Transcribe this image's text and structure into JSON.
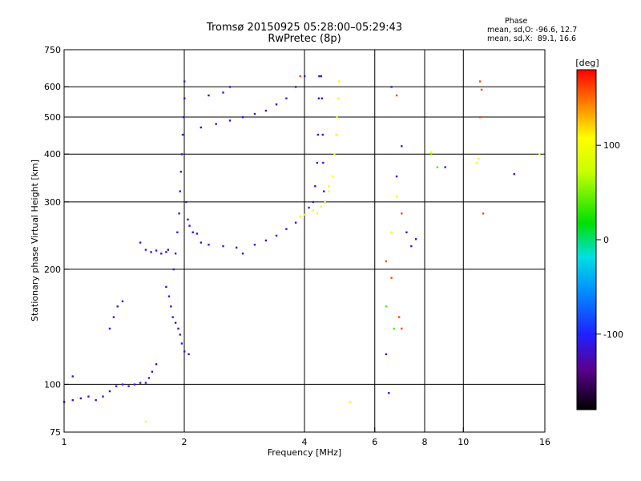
{
  "header": {
    "title_line1": "Tromsø 20150925 05:28:00–05:29:43",
    "title_line2": "RwPretec (8p)",
    "phase_label": "Phase",
    "phase_o": "mean, sd,O: -96.6, 12.7",
    "phase_x": "mean, sd,X:  89.1, 16.6"
  },
  "colorbar": {
    "unit_label": "[deg]",
    "ticks": [
      {
        "value": 100,
        "label": "100"
      },
      {
        "value": 0,
        "label": "0"
      },
      {
        "value": -100,
        "label": "-100"
      }
    ],
    "range": [
      -180,
      180
    ]
  },
  "chart_data": {
    "type": "scatter",
    "title": "Tromsø 20150925 05:28:00–05:29:43",
    "subtitle": "RwPretec (8p)",
    "xlabel": "Frequency [MHz]",
    "ylabel": "Stationary phase Virtual Height [km]",
    "x_scale": "log",
    "y_scale": "log",
    "xlim": [
      1,
      16
    ],
    "ylim": [
      75,
      750
    ],
    "x_ticks": [
      {
        "value": 1,
        "label": "1"
      },
      {
        "value": 2,
        "label": "2"
      },
      {
        "value": 4,
        "label": "4"
      },
      {
        "value": 6,
        "label": "6"
      },
      {
        "value": 8,
        "label": "8"
      },
      {
        "value": 10,
        "label": "10"
      },
      {
        "value": 16,
        "label": "16"
      }
    ],
    "y_ticks": [
      {
        "value": 75,
        "label": "75"
      },
      {
        "value": 100,
        "label": "100"
      },
      {
        "value": 200,
        "label": "200"
      },
      {
        "value": 300,
        "label": "300"
      },
      {
        "value": 400,
        "label": "400"
      },
      {
        "value": 500,
        "label": "500"
      },
      {
        "value": 600,
        "label": "600"
      },
      {
        "value": 750,
        "label": "750"
      }
    ],
    "grid_x": [
      2,
      4,
      6,
      8,
      10
    ],
    "grid_y": [
      100,
      200,
      300,
      400,
      500,
      600
    ],
    "color_scale": "phase [deg], rainbow, -180 (black) to 180 (red)",
    "series": [
      {
        "phase": -110,
        "points": [
          [
            1.0,
            90
          ],
          [
            1.05,
            91
          ],
          [
            1.1,
            92
          ],
          [
            1.15,
            93
          ],
          [
            1.2,
            91
          ],
          [
            1.25,
            93
          ],
          [
            1.3,
            96
          ],
          [
            1.35,
            99
          ],
          [
            1.4,
            100
          ],
          [
            1.45,
            99
          ],
          [
            1.5,
            100
          ],
          [
            1.55,
            101
          ],
          [
            1.6,
            101
          ],
          [
            1.63,
            104
          ],
          [
            1.66,
            108
          ],
          [
            1.7,
            113
          ],
          [
            1.05,
            105
          ],
          [
            1.3,
            140
          ],
          [
            1.33,
            150
          ],
          [
            1.36,
            160
          ],
          [
            1.4,
            165
          ],
          [
            1.55,
            235
          ],
          [
            1.6,
            225
          ],
          [
            1.65,
            222
          ],
          [
            1.7,
            224
          ],
          [
            1.75,
            220
          ],
          [
            1.8,
            222
          ],
          [
            1.82,
            225
          ],
          [
            1.8,
            180
          ],
          [
            1.83,
            170
          ],
          [
            1.85,
            160
          ],
          [
            1.87,
            150
          ],
          [
            1.9,
            145
          ],
          [
            1.93,
            140
          ],
          [
            1.95,
            135
          ],
          [
            1.97,
            128
          ],
          [
            2.0,
            122
          ],
          [
            2.05,
            120
          ],
          [
            1.88,
            200
          ],
          [
            1.9,
            220
          ],
          [
            1.92,
            250
          ],
          [
            1.94,
            280
          ],
          [
            1.95,
            320
          ],
          [
            1.96,
            360
          ],
          [
            1.97,
            400
          ],
          [
            1.98,
            450
          ],
          [
            1.99,
            500
          ],
          [
            2.0,
            560
          ],
          [
            2.0,
            620
          ],
          [
            2.02,
            300
          ],
          [
            2.04,
            270
          ],
          [
            2.06,
            260
          ],
          [
            2.1,
            250
          ],
          [
            2.15,
            248
          ],
          [
            2.2,
            235
          ],
          [
            2.3,
            232
          ],
          [
            2.5,
            230
          ],
          [
            2.7,
            228
          ],
          [
            3.0,
            232
          ],
          [
            3.2,
            238
          ],
          [
            3.4,
            245
          ],
          [
            3.6,
            255
          ],
          [
            3.8,
            265
          ],
          [
            4.0,
            278
          ],
          [
            4.1,
            290
          ],
          [
            4.2,
            300
          ],
          [
            4.25,
            330
          ],
          [
            4.3,
            380
          ],
          [
            4.32,
            450
          ],
          [
            4.34,
            560
          ],
          [
            4.35,
            640
          ],
          [
            4.4,
            640
          ],
          [
            4.42,
            560
          ],
          [
            4.44,
            450
          ],
          [
            4.45,
            380
          ],
          [
            4.47,
            320
          ],
          [
            4.5,
            300
          ],
          [
            2.2,
            470
          ],
          [
            2.4,
            480
          ],
          [
            2.6,
            490
          ],
          [
            2.8,
            500
          ],
          [
            3.0,
            510
          ],
          [
            3.2,
            520
          ],
          [
            3.4,
            540
          ],
          [
            3.6,
            560
          ],
          [
            3.8,
            600
          ],
          [
            4.0,
            640
          ],
          [
            2.3,
            570
          ],
          [
            2.5,
            580
          ],
          [
            2.6,
            600
          ],
          [
            2.8,
            220
          ],
          [
            6.6,
            600
          ],
          [
            6.8,
            350
          ],
          [
            7.0,
            420
          ],
          [
            7.2,
            250
          ],
          [
            7.4,
            230
          ],
          [
            6.4,
            120
          ],
          [
            6.5,
            95
          ],
          [
            13.4,
            355
          ],
          [
            9.0,
            370
          ],
          [
            7.6,
            240
          ]
        ]
      },
      {
        "phase": 100,
        "points": [
          [
            3.9,
            275
          ],
          [
            4.0,
            278
          ],
          [
            4.2,
            285
          ],
          [
            4.4,
            292
          ],
          [
            4.5,
            300
          ],
          [
            4.6,
            320
          ],
          [
            4.7,
            350
          ],
          [
            4.75,
            400
          ],
          [
            4.8,
            450
          ],
          [
            4.82,
            500
          ],
          [
            4.85,
            560
          ],
          [
            4.88,
            620
          ],
          [
            4.3,
            280
          ],
          [
            4.6,
            330
          ],
          [
            6.6,
            250
          ],
          [
            6.8,
            310
          ],
          [
            8.3,
            405
          ],
          [
            10.8,
            380
          ],
          [
            10.9,
            390
          ],
          [
            15.5,
            400
          ],
          [
            1.6,
            80
          ],
          [
            5.2,
            90
          ]
        ]
      },
      {
        "phase": 160,
        "points": [
          [
            6.4,
            210
          ],
          [
            6.6,
            190
          ],
          [
            6.9,
            150
          ],
          [
            7.0,
            140
          ],
          [
            7.0,
            280
          ],
          [
            11.0,
            620
          ],
          [
            11.1,
            590
          ],
          [
            11.0,
            500
          ],
          [
            11.2,
            280
          ],
          [
            3.9,
            640
          ],
          [
            6.8,
            570
          ]
        ]
      },
      {
        "phase": 40,
        "points": [
          [
            8.3,
            400
          ],
          [
            8.6,
            370
          ],
          [
            6.4,
            160
          ],
          [
            6.7,
            140
          ]
        ]
      }
    ]
  }
}
